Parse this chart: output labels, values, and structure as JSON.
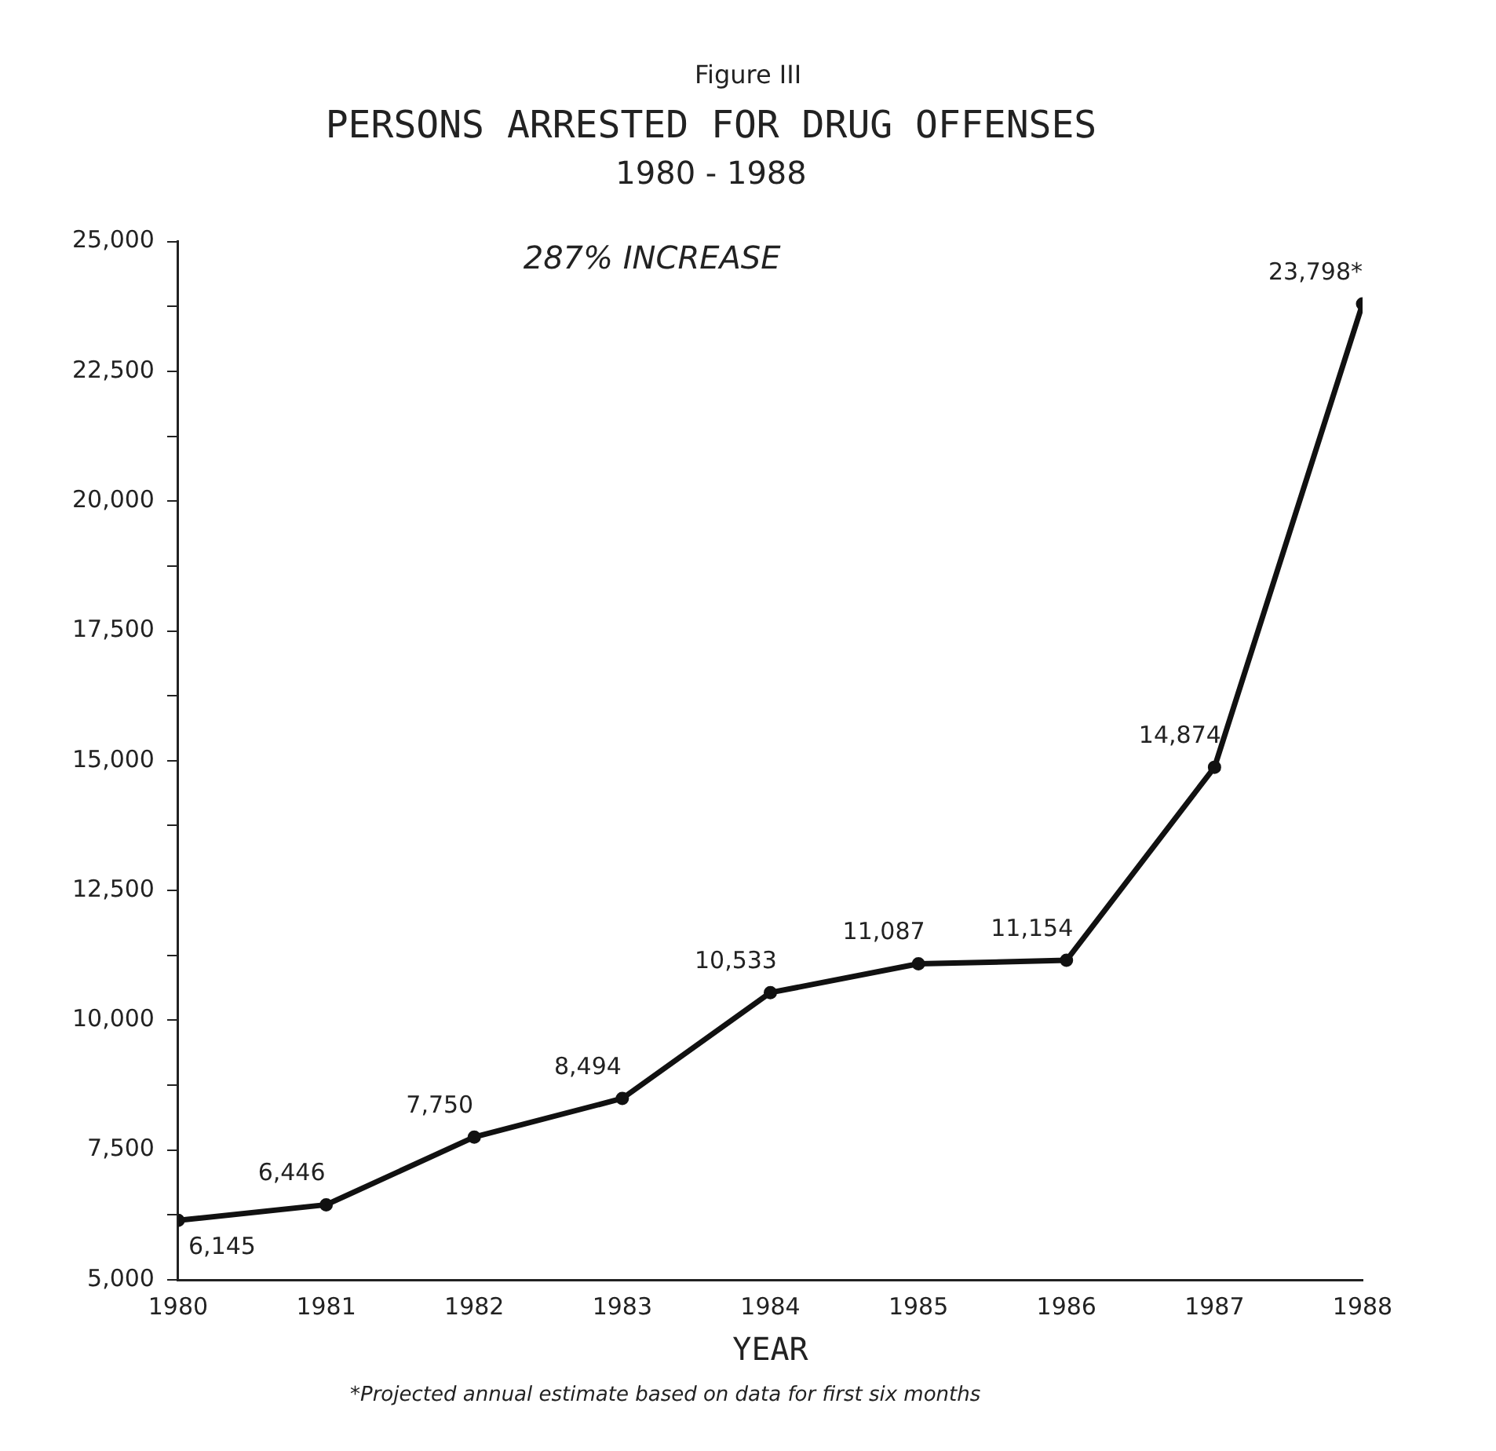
{
  "chart_data": {
    "type": "line",
    "title": "PERSONS ARRESTED FOR DRUG OFFENSES",
    "subtitle": "1980 - 1988",
    "xlabel": "YEAR",
    "annotations": [
      "Figure III",
      "287% INCREASE",
      "*Projected annual estimate based on data for first six months"
    ],
    "x": [
      1980,
      1981,
      1982,
      1983,
      1984,
      1985,
      1986,
      1987,
      1988
    ],
    "series": [
      {
        "color": "#111111",
        "values": [
          6145,
          6446,
          7750,
          8494,
          10533,
          11087,
          11154,
          14874,
          23798
        ],
        "value_labels": [
          "6,145",
          "6,446",
          "7,750",
          "8,494",
          "10,533",
          "11,087",
          "11,154",
          "14,874",
          "23,798*"
        ]
      }
    ],
    "xlim": [
      1980,
      1988
    ],
    "xticks": [
      1980,
      1981,
      1982,
      1983,
      1984,
      1985,
      1986,
      1987,
      1988
    ],
    "ylim": [
      5000,
      25000
    ],
    "yticks": [
      {
        "value": 5000,
        "label": "5,000"
      },
      {
        "value": 6250,
        "label": null
      },
      {
        "value": 7500,
        "label": "7,500"
      },
      {
        "value": 8750,
        "label": null
      },
      {
        "value": 10000,
        "label": "10,000"
      },
      {
        "value": 11250,
        "label": null
      },
      {
        "value": 12500,
        "label": "12,500"
      },
      {
        "value": 13750,
        "label": null
      },
      {
        "value": 15000,
        "label": "15,000"
      },
      {
        "value": 16250,
        "label": null
      },
      {
        "value": 17500,
        "label": "17,500"
      },
      {
        "value": 18750,
        "label": null
      },
      {
        "value": 20000,
        "label": "20,000"
      },
      {
        "value": 21250,
        "label": null
      },
      {
        "value": 22500,
        "label": "22,500"
      },
      {
        "value": 23750,
        "label": null
      },
      {
        "value": 25000,
        "label": "25,000"
      }
    ],
    "grid": false,
    "legend": false,
    "marker": "circle",
    "line_style": "solid"
  }
}
